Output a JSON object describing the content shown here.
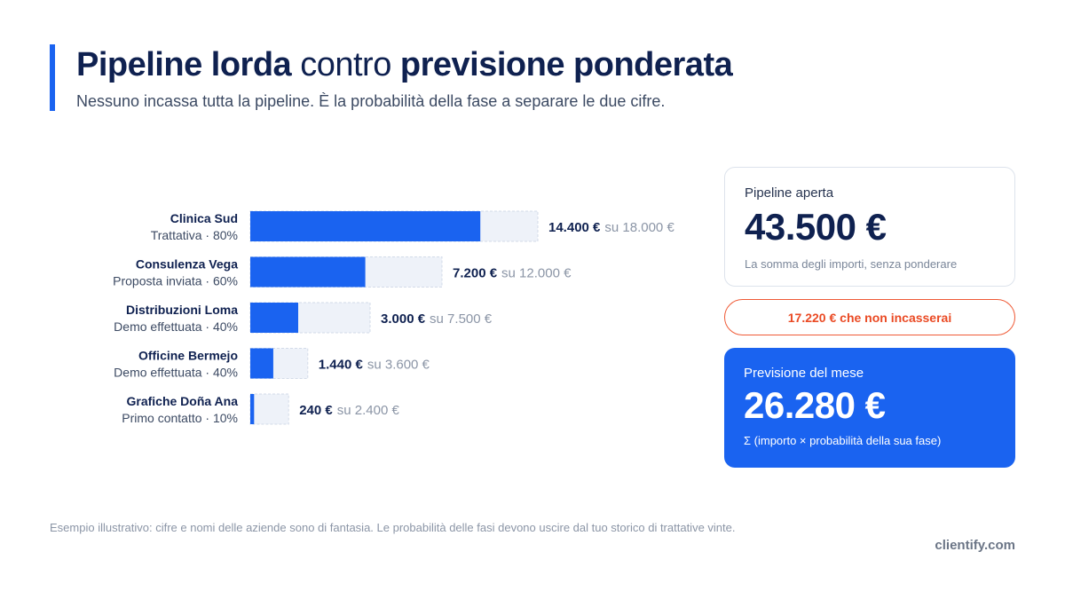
{
  "header": {
    "title_part1": "Pipeline lorda",
    "title_part2": " contro ",
    "title_part3": "previsione ponderata",
    "subtitle": "Nessuno incassa tutta la pipeline. È la probabilità della fase a separare le due cifre."
  },
  "colors": {
    "accent": "#1a63f0",
    "navy": "#0f2150",
    "track": "#eef2f9",
    "warning": "#ea4a24"
  },
  "chart_data": {
    "type": "bar",
    "orientation": "horizontal",
    "stacked_overlay": true,
    "max_value": 18000,
    "categories": [
      "Clinica Sud",
      "Consulenza Vega",
      "Distribuzioni Loma",
      "Officine Bermejo",
      "Grafiche Doña Ana"
    ],
    "stages": [
      "Trattativa · 80%",
      "Proposta inviata · 60%",
      "Demo effettuata · 40%",
      "Demo effettuata · 40%",
      "Primo contatto · 10%"
    ],
    "series": [
      {
        "name": "",
        "values": [
          14400,
          7200,
          3000,
          1440,
          240
        ]
      },
      {
        "name": "",
        "values": [
          18000,
          12000,
          7500,
          3600,
          2400
        ]
      }
    ],
    "weighted_labels": [
      "14.400 €",
      "7.200 €",
      "3.000 €",
      "1.440 €",
      "240 €"
    ],
    "total_labels": [
      "su 18.000 €",
      "su 12.000 €",
      "su 7.500 €",
      "su 3.600 €",
      "su 2.400 €"
    ]
  },
  "cards": {
    "open": {
      "label": "Pipeline aperta",
      "value": "43.500 €",
      "note": "La somma degli importi, senza ponderare"
    },
    "loss": "17.220 € che non incasserai",
    "forecast": {
      "label": "Previsione del mese",
      "value": "26.280 €",
      "note": "Σ (importo × probabilità della sua fase)"
    }
  },
  "footer": {
    "note": "Esempio illustrativo: cifre e nomi delle aziende sono di fantasia. Le probabilità delle fasi devono uscire dal tuo storico di trattative vinte.",
    "brand": "clientify.com"
  }
}
